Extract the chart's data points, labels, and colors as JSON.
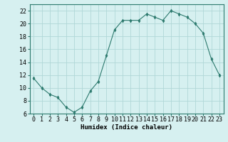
{
  "x": [
    0,
    1,
    2,
    3,
    4,
    5,
    6,
    7,
    8,
    9,
    10,
    11,
    12,
    13,
    14,
    15,
    16,
    17,
    18,
    19,
    20,
    21,
    22,
    23
  ],
  "y": [
    11.5,
    10,
    9,
    8.5,
    7,
    6.2,
    7,
    9.5,
    11,
    15,
    19,
    20.5,
    20.5,
    20.5,
    21.5,
    21,
    20.5,
    22,
    21.5,
    21,
    20,
    18.5,
    14.5,
    12
  ],
  "line_color": "#2d7a6e",
  "marker": "d",
  "marker_size": 2.5,
  "bg_color": "#d6f0f0",
  "grid_color": "#b0d8d8",
  "xlabel": "Humidex (Indice chaleur)",
  "ylim": [
    6,
    23
  ],
  "xlim": [
    -0.5,
    23.5
  ],
  "yticks": [
    6,
    8,
    10,
    12,
    14,
    16,
    18,
    20,
    22
  ],
  "xticks": [
    0,
    1,
    2,
    3,
    4,
    5,
    6,
    7,
    8,
    9,
    10,
    11,
    12,
    13,
    14,
    15,
    16,
    17,
    18,
    19,
    20,
    21,
    22,
    23
  ],
  "xlabel_fontsize": 6.5,
  "tick_fontsize": 6,
  "axis_color": "#2d7a6e",
  "linewidth": 0.8
}
